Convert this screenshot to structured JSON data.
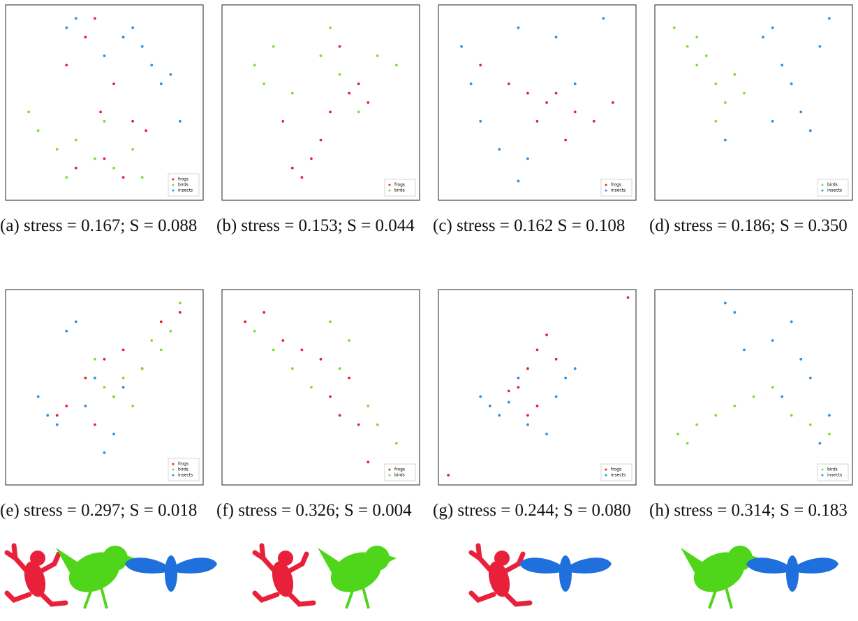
{
  "chart_data": [
    {
      "type": "scatter",
      "caption": "(a) stress = 0.167; S = 0.088",
      "xlim": [
        0,
        100
      ],
      "ylim": [
        0,
        100
      ],
      "legend": "lower right",
      "series": [
        {
          "name": "frogs",
          "color": "#e8203a",
          "x": [
            45,
            40,
            30,
            55,
            65,
            72,
            50,
            35,
            60,
            48
          ],
          "y": [
            95,
            85,
            70,
            60,
            40,
            35,
            20,
            15,
            10,
            45
          ]
        },
        {
          "name": "birds",
          "color": "#7be02a",
          "x": [
            10,
            15,
            25,
            35,
            45,
            55,
            65,
            70,
            30,
            50
          ],
          "y": [
            45,
            35,
            25,
            30,
            20,
            15,
            25,
            10,
            10,
            40
          ]
        },
        {
          "name": "insects",
          "color": "#2e90e0",
          "x": [
            30,
            35,
            50,
            60,
            70,
            80,
            85,
            90,
            75,
            65
          ],
          "y": [
            90,
            95,
            75,
            85,
            80,
            60,
            65,
            40,
            70,
            90
          ]
        }
      ]
    },
    {
      "type": "scatter",
      "caption": "(b) stress = 0.153; S = 0.044",
      "xlim": [
        0,
        100
      ],
      "ylim": [
        0,
        100
      ],
      "legend": "lower right",
      "series": [
        {
          "name": "frogs",
          "color": "#e8203a",
          "x": [
            40,
            35,
            45,
            50,
            55,
            65,
            70,
            75,
            30,
            60
          ],
          "y": [
            10,
            15,
            20,
            30,
            45,
            55,
            60,
            50,
            40,
            80
          ]
        },
        {
          "name": "birds",
          "color": "#7be02a",
          "x": [
            15,
            20,
            25,
            35,
            50,
            55,
            60,
            70,
            80,
            90
          ],
          "y": [
            70,
            60,
            80,
            55,
            75,
            90,
            65,
            45,
            75,
            70
          ]
        }
      ]
    },
    {
      "type": "scatter",
      "caption": "(c) stress = 0.162 S = 0.108",
      "xlim": [
        0,
        100
      ],
      "ylim": [
        0,
        100
      ],
      "legend": "lower right",
      "series": [
        {
          "name": "frogs",
          "color": "#e8203a",
          "x": [
            20,
            35,
            45,
            55,
            60,
            70,
            80,
            90,
            65,
            50
          ],
          "y": [
            70,
            60,
            55,
            50,
            55,
            45,
            40,
            50,
            30,
            40
          ]
        },
        {
          "name": "insects",
          "color": "#2e90e0",
          "x": [
            10,
            15,
            20,
            30,
            40,
            45,
            60,
            70,
            85,
            40
          ],
          "y": [
            80,
            60,
            40,
            25,
            90,
            20,
            85,
            60,
            95,
            8
          ]
        }
      ]
    },
    {
      "type": "scatter",
      "caption": "(d) stress = 0.186; S = 0.350",
      "xlim": [
        0,
        100
      ],
      "ylim": [
        0,
        100
      ],
      "legend": "lower right",
      "series": [
        {
          "name": "birds",
          "color": "#7be02a",
          "x": [
            8,
            15,
            20,
            25,
            30,
            35,
            40,
            45,
            30,
            20
          ],
          "y": [
            90,
            80,
            70,
            75,
            60,
            50,
            65,
            55,
            40,
            85
          ]
        },
        {
          "name": "insects",
          "color": "#2e90e0",
          "x": [
            55,
            60,
            65,
            70,
            75,
            80,
            85,
            90,
            60,
            35
          ],
          "y": [
            85,
            90,
            70,
            60,
            45,
            35,
            80,
            95,
            40,
            30
          ]
        }
      ]
    },
    {
      "type": "scatter",
      "caption": "(e) stress = 0.297; S = 0.018",
      "xlim": [
        0,
        100
      ],
      "ylim": [
        0,
        100
      ],
      "legend": "lower right",
      "series": [
        {
          "name": "frogs",
          "color": "#e8203a",
          "x": [
            30,
            40,
            50,
            60,
            70,
            80,
            90,
            45,
            55,
            25
          ],
          "y": [
            40,
            55,
            65,
            70,
            60,
            85,
            90,
            30,
            45,
            35
          ]
        },
        {
          "name": "birds",
          "color": "#7be02a",
          "x": [
            50,
            60,
            70,
            75,
            80,
            85,
            65,
            55,
            90,
            45
          ],
          "y": [
            50,
            55,
            60,
            75,
            70,
            80,
            40,
            45,
            95,
            65
          ]
        },
        {
          "name": "insects",
          "color": "#2e90e0",
          "x": [
            15,
            20,
            30,
            35,
            45,
            55,
            50,
            40,
            25,
            60
          ],
          "y": [
            45,
            35,
            80,
            85,
            55,
            25,
            15,
            40,
            30,
            50
          ]
        }
      ]
    },
    {
      "type": "scatter",
      "caption": "(f) stress = 0.326; S = 0.004",
      "xlim": [
        0,
        100
      ],
      "ylim": [
        0,
        100
      ],
      "legend": "lower right",
      "series": [
        {
          "name": "frogs",
          "color": "#e8203a",
          "x": [
            10,
            20,
            30,
            40,
            50,
            55,
            60,
            70,
            75,
            65
          ],
          "y": [
            85,
            90,
            75,
            70,
            65,
            45,
            35,
            30,
            10,
            55
          ]
        },
        {
          "name": "birds",
          "color": "#7be02a",
          "x": [
            15,
            25,
            35,
            45,
            55,
            65,
            75,
            80,
            90,
            60
          ],
          "y": [
            80,
            70,
            60,
            50,
            85,
            75,
            40,
            30,
            20,
            60
          ]
        }
      ]
    },
    {
      "type": "scatter",
      "caption": "(g) stress = 0.244; S = 0.080",
      "xlim": [
        0,
        100
      ],
      "ylim": [
        0,
        100
      ],
      "legend": "lower right",
      "series": [
        {
          "name": "frogs",
          "color": "#e8203a",
          "x": [
            40,
            45,
            50,
            55,
            60,
            50,
            45,
            35,
            98,
            3
          ],
          "y": [
            50,
            60,
            70,
            78,
            65,
            40,
            35,
            48,
            98,
            3
          ]
        },
        {
          "name": "insects",
          "color": "#2e90e0",
          "x": [
            20,
            25,
            30,
            45,
            55,
            65,
            70,
            40,
            60,
            35
          ],
          "y": [
            45,
            40,
            35,
            30,
            25,
            55,
            60,
            55,
            45,
            42
          ]
        }
      ]
    },
    {
      "type": "scatter",
      "caption": "(h) stress = 0.314; S = 0.183",
      "xlim": [
        0,
        100
      ],
      "ylim": [
        0,
        100
      ],
      "legend": "lower right",
      "series": [
        {
          "name": "birds",
          "color": "#7be02a",
          "x": [
            10,
            15,
            20,
            30,
            40,
            50,
            60,
            70,
            80,
            90
          ],
          "y": [
            25,
            20,
            30,
            35,
            40,
            45,
            50,
            35,
            30,
            25
          ]
        },
        {
          "name": "insects",
          "color": "#2e90e0",
          "x": [
            35,
            40,
            45,
            60,
            70,
            75,
            80,
            90,
            85,
            65
          ],
          "y": [
            95,
            90,
            70,
            75,
            85,
            65,
            55,
            35,
            20,
            45
          ]
        }
      ]
    }
  ]
}
